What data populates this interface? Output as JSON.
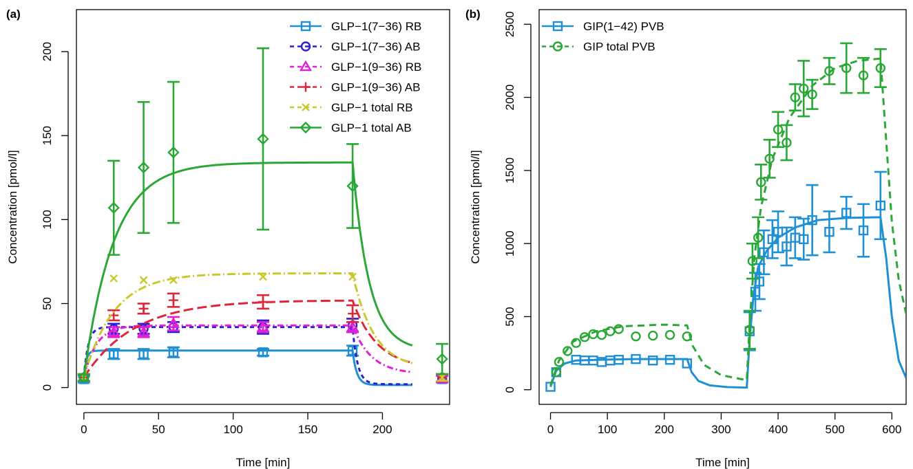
{
  "chart_data": [
    {
      "panel": "(a)",
      "type": "line",
      "title": "",
      "xlabel": "Time [min]",
      "ylabel": "Concentration [pmol/l]",
      "xlim": [
        -5,
        245
      ],
      "ylim": [
        -10,
        225
      ],
      "xticks": [
        0,
        50,
        100,
        150,
        200
      ],
      "yticks": [
        0,
        50,
        100,
        150,
        200
      ],
      "legend_position": "top-right",
      "series": [
        {
          "name": "GLP−1(7−36) RB",
          "color": "#1f8fd6",
          "dash": "solid",
          "marker": "square",
          "curve": {
            "baseline": 6,
            "plateau": 22,
            "k": 0.6,
            "stop": 180,
            "end": 1.5,
            "kd": 0.35,
            "tmax": 220
          },
          "points": [
            {
              "x": 0,
              "y": 5,
              "err": 2
            },
            {
              "x": 20,
              "y": 20,
              "err": 3
            },
            {
              "x": 40,
              "y": 20,
              "err": 3
            },
            {
              "x": 60,
              "y": 21,
              "err": 3
            },
            {
              "x": 120,
              "y": 21,
              "err": 2
            },
            {
              "x": 180,
              "y": 22,
              "err": 3
            },
            {
              "x": 240,
              "y": 5,
              "err": 2
            }
          ]
        },
        {
          "name": "GLP−1(7−36) AB",
          "color": "#2b1fd6",
          "dash": "6,5",
          "marker": "circle",
          "curve": {
            "baseline": 6,
            "plateau": 36,
            "k": 0.35,
            "stop": 180,
            "end": 2,
            "kd": 0.3,
            "tmax": 220
          },
          "points": [
            {
              "x": 0,
              "y": 6,
              "err": 2
            },
            {
              "x": 20,
              "y": 35,
              "err": 3
            },
            {
              "x": 40,
              "y": 35,
              "err": 3
            },
            {
              "x": 60,
              "y": 36,
              "err": 3
            },
            {
              "x": 120,
              "y": 36,
              "err": 4
            },
            {
              "x": 180,
              "y": 37,
              "err": 4
            },
            {
              "x": 240,
              "y": 6,
              "err": 2
            }
          ]
        },
        {
          "name": "GLP−1(9−36) RB",
          "color": "#e020d6",
          "dash": "9,4,2,4",
          "marker": "triangle",
          "curve": {
            "baseline": 6,
            "plateau": 37,
            "k": 0.12,
            "stop": 180,
            "end": 8,
            "kd": 0.08,
            "tmax": 220
          },
          "points": [
            {
              "x": 0,
              "y": 6,
              "err": 2
            },
            {
              "x": 20,
              "y": 33,
              "err": 3
            },
            {
              "x": 40,
              "y": 33,
              "err": 3
            },
            {
              "x": 60,
              "y": 38,
              "err": 4
            },
            {
              "x": 120,
              "y": 36,
              "err": 3
            },
            {
              "x": 180,
              "y": 36,
              "err": 3
            },
            {
              "x": 240,
              "y": 5,
              "err": 2
            }
          ]
        },
        {
          "name": "GLP−1(9−36) AB",
          "color": "#e0253a",
          "dash": "14,6",
          "marker": "plus",
          "curve": {
            "baseline": 6,
            "plateau": 52,
            "k": 0.03,
            "stop": 180,
            "end": 11,
            "kd": 0.06,
            "tmax": 220
          },
          "points": [
            {
              "x": 0,
              "y": 6,
              "err": 2
            },
            {
              "x": 20,
              "y": 43,
              "err": 3
            },
            {
              "x": 40,
              "y": 47,
              "err": 3
            },
            {
              "x": 60,
              "y": 52,
              "err": 4
            },
            {
              "x": 120,
              "y": 51,
              "err": 4
            },
            {
              "x": 180,
              "y": 44,
              "err": 5
            },
            {
              "x": 240,
              "y": 6,
              "err": 2
            }
          ]
        },
        {
          "name": "GLP−1 total RB",
          "color": "#c9c92a",
          "dash": "12,4,2,4",
          "marker": "x",
          "curve": {
            "baseline": 6,
            "plateau": 68,
            "k": 0.05,
            "stop": 180,
            "end": 11,
            "kd": 0.07,
            "tmax": 220
          },
          "points": [
            {
              "x": 0,
              "y": 6,
              "err": 2
            },
            {
              "x": 20,
              "y": 65,
              "err": 0
            },
            {
              "x": 40,
              "y": 64,
              "err": 0
            },
            {
              "x": 60,
              "y": 64,
              "err": 0
            },
            {
              "x": 120,
              "y": 66,
              "err": 0
            },
            {
              "x": 180,
              "y": 66,
              "err": 0
            },
            {
              "x": 240,
              "y": 6,
              "err": 2
            }
          ]
        },
        {
          "name": "GLP−1 total AB",
          "color": "#2aa836",
          "dash": "solid",
          "marker": "diamond",
          "curve": {
            "baseline": 6,
            "plateau": 134,
            "k": 0.05,
            "stop": 180,
            "end": 22,
            "kd": 0.09,
            "tmax": 220
          },
          "points": [
            {
              "x": 0,
              "y": 6,
              "err": 2
            },
            {
              "x": 20,
              "y": 107,
              "err": 28
            },
            {
              "x": 40,
              "y": 131,
              "err": 39
            },
            {
              "x": 60,
              "y": 140,
              "err": 42
            },
            {
              "x": 120,
              "y": 148,
              "err": 54
            },
            {
              "x": 180,
              "y": 120,
              "err": 25
            },
            {
              "x": 240,
              "y": 17,
              "err": 9
            }
          ]
        }
      ]
    },
    {
      "panel": "(b)",
      "type": "line",
      "title": "",
      "xlabel": "Time [min]",
      "ylabel": "Concentration [pmol/l]",
      "xlim": [
        -20,
        625
      ],
      "ylim": [
        -100,
        2600
      ],
      "xticks": [
        0,
        100,
        200,
        300,
        400,
        500,
        600
      ],
      "yticks": [
        0,
        500,
        1000,
        1500,
        2000,
        2500
      ],
      "legend_position": "top-left",
      "series": [
        {
          "name": "GIP(1−42) PVB",
          "color": "#1f8fd6",
          "dash": "solid",
          "marker": "square",
          "curve": [
            [
              0,
              20
            ],
            [
              10,
              130
            ],
            [
              25,
              180
            ],
            [
              45,
              200
            ],
            [
              80,
              205
            ],
            [
              150,
              210
            ],
            [
              240,
              210
            ],
            [
              248,
              120
            ],
            [
              260,
              60
            ],
            [
              280,
              30
            ],
            [
              310,
              18
            ],
            [
              345,
              15
            ],
            [
              350,
              350
            ],
            [
              357,
              650
            ],
            [
              365,
              840
            ],
            [
              380,
              950
            ],
            [
              400,
              1040
            ],
            [
              430,
              1110
            ],
            [
              470,
              1160
            ],
            [
              520,
              1175
            ],
            [
              580,
              1180
            ],
            [
              590,
              900
            ],
            [
              600,
              500
            ],
            [
              612,
              200
            ],
            [
              625,
              80
            ]
          ],
          "points": [
            {
              "x": 0,
              "y": 20,
              "err": 0
            },
            {
              "x": 10,
              "y": 120,
              "err": 0
            },
            {
              "x": 45,
              "y": 205,
              "err": 0
            },
            {
              "x": 60,
              "y": 200,
              "err": 0
            },
            {
              "x": 75,
              "y": 200,
              "err": 0
            },
            {
              "x": 90,
              "y": 190,
              "err": 0
            },
            {
              "x": 105,
              "y": 200,
              "err": 0
            },
            {
              "x": 120,
              "y": 205,
              "err": 0
            },
            {
              "x": 150,
              "y": 210,
              "err": 0
            },
            {
              "x": 180,
              "y": 200,
              "err": 0
            },
            {
              "x": 210,
              "y": 205,
              "err": 0
            },
            {
              "x": 240,
              "y": 180,
              "err": 0
            },
            {
              "x": 350,
              "y": 400,
              "err": 130
            },
            {
              "x": 360,
              "y": 670,
              "err": 130
            },
            {
              "x": 367,
              "y": 740,
              "err": 120
            },
            {
              "x": 375,
              "y": 940,
              "err": 150
            },
            {
              "x": 390,
              "y": 1030,
              "err": 130
            },
            {
              "x": 400,
              "y": 1080,
              "err": 140
            },
            {
              "x": 415,
              "y": 980,
              "err": 130
            },
            {
              "x": 430,
              "y": 1040,
              "err": 140
            },
            {
              "x": 445,
              "y": 1030,
              "err": 140
            },
            {
              "x": 460,
              "y": 1160,
              "err": 240
            },
            {
              "x": 490,
              "y": 1080,
              "err": 140
            },
            {
              "x": 520,
              "y": 1210,
              "err": 110
            },
            {
              "x": 550,
              "y": 1090,
              "err": 180
            },
            {
              "x": 580,
              "y": 1260,
              "err": 230
            }
          ]
        },
        {
          "name": "GIP total PVB",
          "color": "#2aa836",
          "dash": "10,7",
          "marker": "circle",
          "curve": [
            [
              0,
              30
            ],
            [
              15,
              200
            ],
            [
              40,
              330
            ],
            [
              80,
              400
            ],
            [
              130,
              435
            ],
            [
              200,
              445
            ],
            [
              240,
              440
            ],
            [
              250,
              300
            ],
            [
              270,
              170
            ],
            [
              300,
              100
            ],
            [
              345,
              65
            ],
            [
              350,
              450
            ],
            [
              358,
              900
            ],
            [
              370,
              1250
            ],
            [
              390,
              1580
            ],
            [
              420,
              1860
            ],
            [
              460,
              2080
            ],
            [
              500,
              2200
            ],
            [
              540,
              2250
            ],
            [
              580,
              2265
            ],
            [
              590,
              1700
            ],
            [
              600,
              1150
            ],
            [
              612,
              750
            ],
            [
              625,
              520
            ]
          ],
          "points": [
            {
              "x": 10,
              "y": 120,
              "err": 0
            },
            {
              "x": 15,
              "y": 190,
              "err": 0
            },
            {
              "x": 30,
              "y": 265,
              "err": 0
            },
            {
              "x": 45,
              "y": 320,
              "err": 0
            },
            {
              "x": 60,
              "y": 360,
              "err": 0
            },
            {
              "x": 75,
              "y": 380,
              "err": 0
            },
            {
              "x": 90,
              "y": 375,
              "err": 0
            },
            {
              "x": 105,
              "y": 400,
              "err": 0
            },
            {
              "x": 120,
              "y": 415,
              "err": 0
            },
            {
              "x": 150,
              "y": 365,
              "err": 0
            },
            {
              "x": 180,
              "y": 370,
              "err": 0
            },
            {
              "x": 210,
              "y": 375,
              "err": 0
            },
            {
              "x": 240,
              "y": 365,
              "err": 0
            },
            {
              "x": 350,
              "y": 410,
              "err": 130
            },
            {
              "x": 355,
              "y": 880,
              "err": 120
            },
            {
              "x": 365,
              "y": 1040,
              "err": 140
            },
            {
              "x": 370,
              "y": 1420,
              "err": 120
            },
            {
              "x": 385,
              "y": 1580,
              "err": 130
            },
            {
              "x": 400,
              "y": 1780,
              "err": 120
            },
            {
              "x": 415,
              "y": 1690,
              "err": 120
            },
            {
              "x": 430,
              "y": 2000,
              "err": 90
            },
            {
              "x": 445,
              "y": 2060,
              "err": 190
            },
            {
              "x": 460,
              "y": 2020,
              "err": 100
            },
            {
              "x": 490,
              "y": 2180,
              "err": 90
            },
            {
              "x": 520,
              "y": 2200,
              "err": 170
            },
            {
              "x": 550,
              "y": 2150,
              "err": 120
            },
            {
              "x": 580,
              "y": 2200,
              "err": 130
            }
          ]
        }
      ]
    }
  ]
}
